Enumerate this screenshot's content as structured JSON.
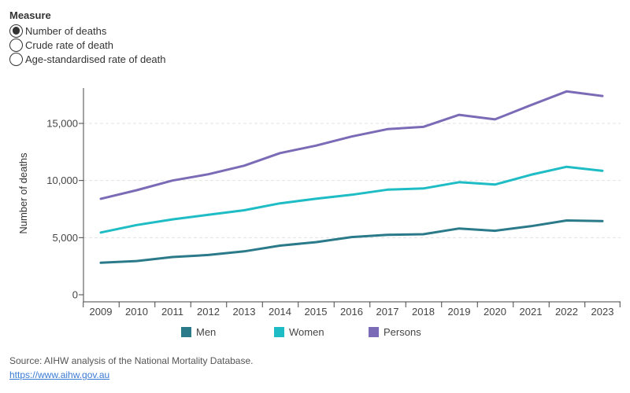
{
  "measure": {
    "title": "Measure",
    "options": [
      {
        "label": "Number of deaths",
        "selected": true
      },
      {
        "label": "Crude rate of death",
        "selected": false
      },
      {
        "label": "Age-standardised rate of death",
        "selected": false
      }
    ]
  },
  "chart_data": {
    "type": "line",
    "title": "",
    "xlabel": "",
    "ylabel": "Number of deaths",
    "x": [
      2009,
      2010,
      2011,
      2012,
      2013,
      2014,
      2015,
      2016,
      2017,
      2018,
      2019,
      2020,
      2021,
      2022,
      2023
    ],
    "x_tick_labels": [
      "2009",
      "2010",
      "2011",
      "2012",
      "2013",
      "2014",
      "2015",
      "2016",
      "2017",
      "2018",
      "2019",
      "2020",
      "2021",
      "2022",
      "2023"
    ],
    "y_ticks": [
      0,
      5000,
      10000,
      15000
    ],
    "y_tick_labels": [
      "0",
      "5,000",
      "10,000",
      "15,000"
    ],
    "ylim": [
      0,
      18000
    ],
    "grid": "horizontal, dashed",
    "legend_position": "bottom",
    "series": [
      {
        "name": "Men",
        "color": "#2b7a8a",
        "values": [
          2800,
          2950,
          3300,
          3480,
          3800,
          4300,
          4600,
          5050,
          5250,
          5300,
          5800,
          5600,
          6000,
          6500,
          6450
        ]
      },
      {
        "name": "Women",
        "color": "#1ebcc4",
        "values": [
          5450,
          6100,
          6600,
          7000,
          7400,
          8000,
          8400,
          8750,
          9200,
          9300,
          9850,
          9650,
          10500,
          11200,
          10850
        ]
      },
      {
        "name": "Persons",
        "color": "#7b6bb6",
        "values": [
          8400,
          9150,
          10000,
          10550,
          11300,
          12400,
          13050,
          13850,
          14500,
          14700,
          15750,
          15350,
          16600,
          17800,
          17400
        ]
      }
    ]
  },
  "footer": {
    "source": "Source: AIHW analysis of the National Mortality Database.",
    "link": "https://www.aihw.gov.au"
  }
}
